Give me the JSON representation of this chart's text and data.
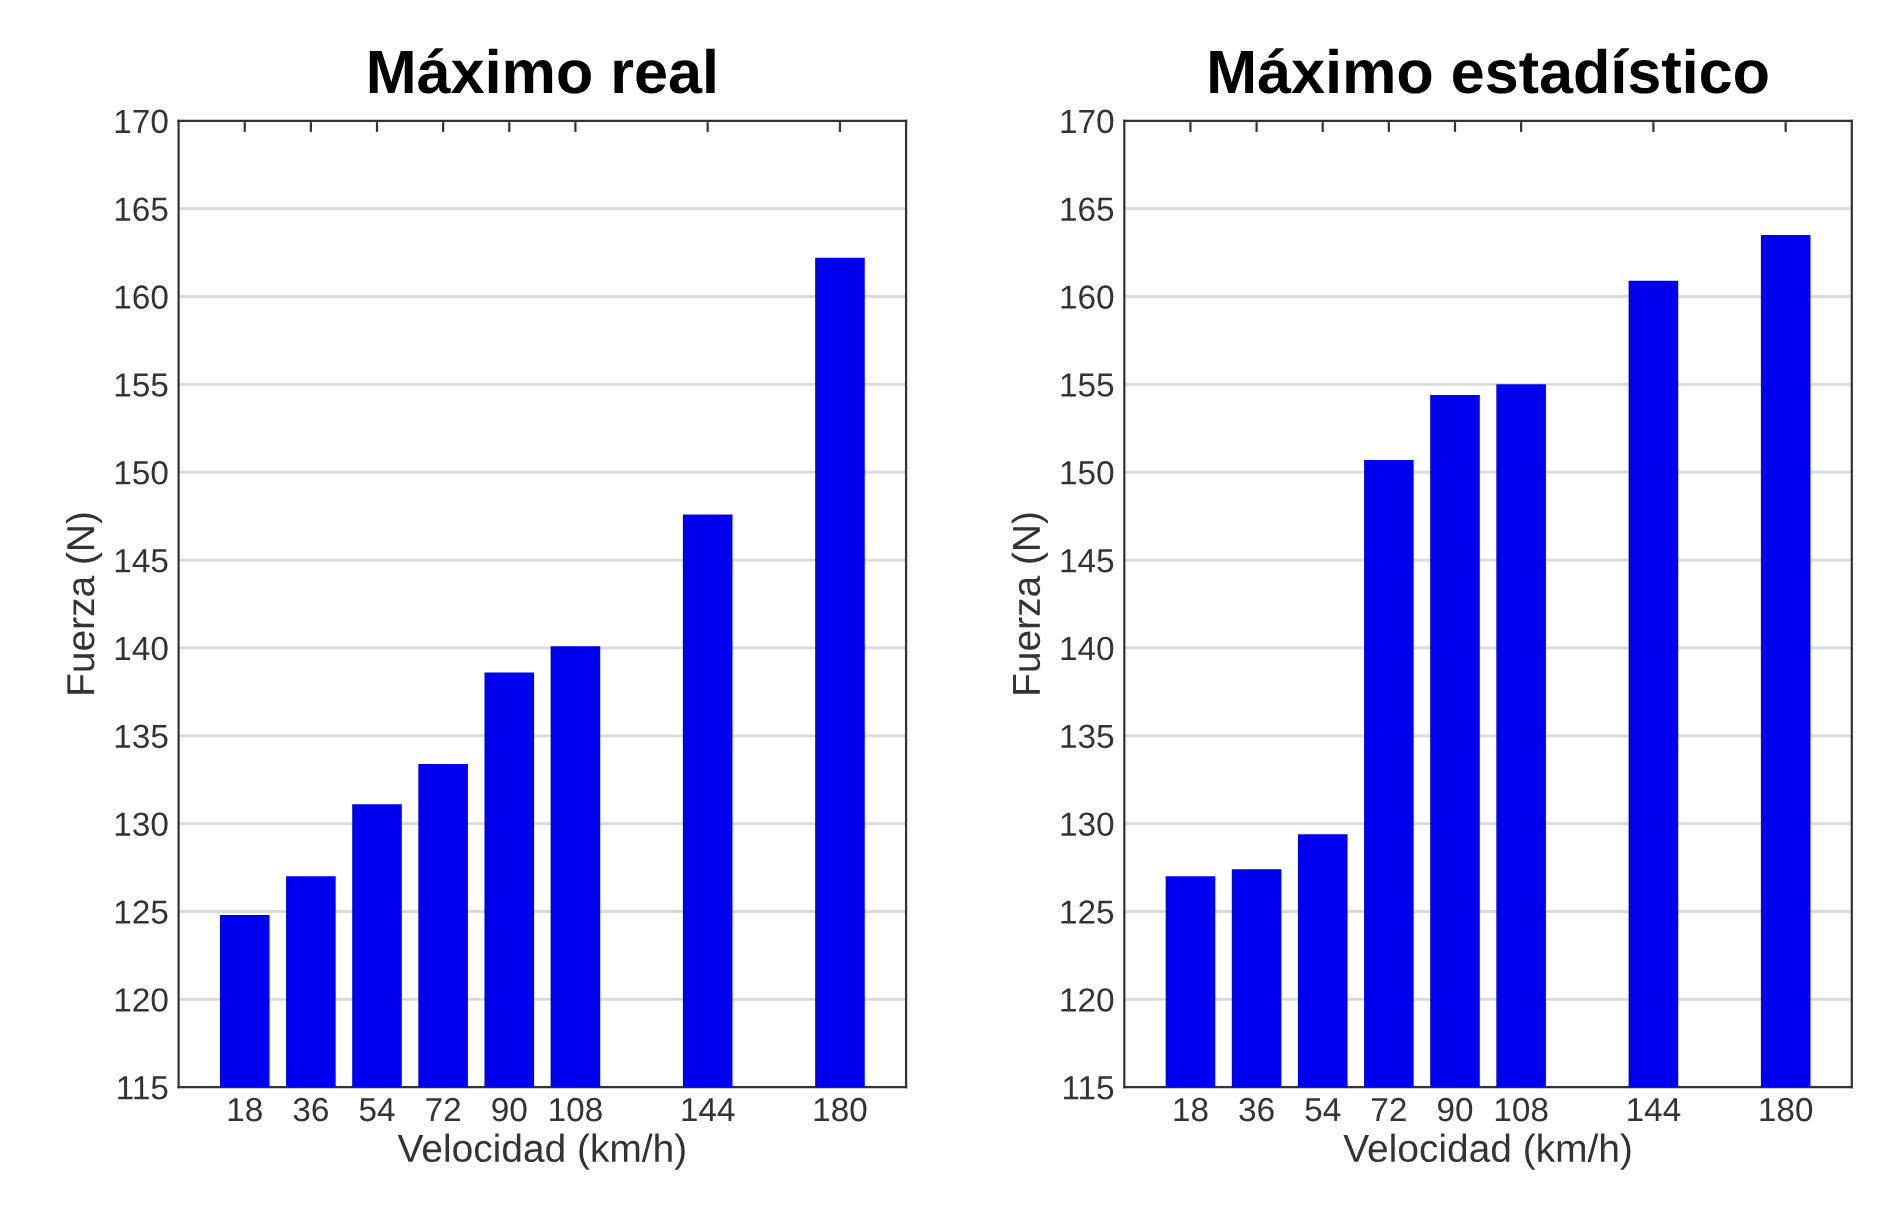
{
  "chart_data": [
    {
      "type": "bar",
      "title": "Máximo real",
      "xlabel": "Velocidad (km/h)",
      "ylabel": "Fuerza (N)",
      "x": [
        18,
        36,
        54,
        72,
        90,
        108,
        144,
        180
      ],
      "series": [
        {
          "color": "#0000ee",
          "values": [
            124.8,
            127.0,
            131.1,
            133.4,
            138.6,
            140.1,
            147.6,
            162.2
          ]
        }
      ],
      "xlim": [
        0,
        198
      ],
      "xticks": [
        18,
        36,
        54,
        72,
        90,
        108,
        144,
        180
      ],
      "ylim": [
        115,
        170
      ],
      "yticks": [
        115,
        120,
        125,
        130,
        135,
        140,
        145,
        150,
        155,
        160,
        165,
        170
      ],
      "grid": "y"
    },
    {
      "type": "bar",
      "title": "Máximo estadístico",
      "xlabel": "Velocidad (km/h)",
      "ylabel": "Fuerza (N)",
      "x": [
        18,
        36,
        54,
        72,
        90,
        108,
        144,
        180
      ],
      "series": [
        {
          "color": "#0000ee",
          "values": [
            127.0,
            127.4,
            129.4,
            150.7,
            154.4,
            155.0,
            160.9,
            163.5
          ]
        }
      ],
      "xlim": [
        0,
        198
      ],
      "xticks": [
        18,
        36,
        54,
        72,
        90,
        108,
        144,
        180
      ],
      "ylim": [
        115,
        170
      ],
      "yticks": [
        115,
        120,
        125,
        130,
        135,
        140,
        145,
        150,
        155,
        160,
        165,
        170
      ],
      "grid": "y"
    }
  ]
}
